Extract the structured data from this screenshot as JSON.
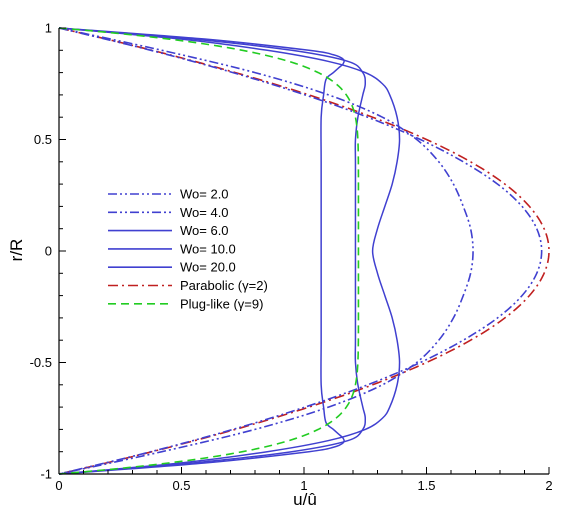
{
  "chart_data": {
    "type": "line",
    "title": "",
    "xlabel": "u/û",
    "ylabel": "r/R",
    "xlim": [
      0,
      2
    ],
    "ylim": [
      -1,
      1
    ],
    "xticks": [
      "0",
      "0.5",
      "1",
      "1.5",
      "2"
    ],
    "yticks": [
      "-1",
      "-0.5",
      "0",
      "0.5",
      "1"
    ],
    "grid": false,
    "legend_position": "left-center",
    "series": [
      {
        "name": "Wo=  2.0",
        "color": "#4040d0",
        "dash": "dash-dot-dot",
        "r": [
          1,
          0.9,
          0.8,
          0.7,
          0.6,
          0.5,
          0.4,
          0.3,
          0.2,
          0.1,
          0,
          -0.1,
          -0.2,
          -0.3,
          -0.4,
          -0.5,
          -0.6,
          -0.7,
          -0.8,
          -0.9,
          -1
        ],
        "u": [
          0,
          0.375,
          0.71,
          1.004,
          1.26,
          1.475,
          1.65,
          1.79,
          1.89,
          1.95,
          1.97,
          1.95,
          1.89,
          1.79,
          1.65,
          1.475,
          1.26,
          1.004,
          0.71,
          0.375,
          0
        ]
      },
      {
        "name": "Wo=  4.0",
        "color": "#4040d0",
        "dash": "dash-dot-dot",
        "r": [
          1,
          0.9,
          0.8,
          0.7,
          0.6,
          0.5,
          0.4,
          0.3,
          0.2,
          0.1,
          0,
          -0.1,
          -0.2,
          -0.3,
          -0.4,
          -0.5,
          -0.6,
          -0.7,
          -0.8,
          -0.9,
          -1
        ],
        "u": [
          0,
          0.42,
          0.8,
          1.1,
          1.32,
          1.46,
          1.55,
          1.61,
          1.65,
          1.68,
          1.69,
          1.68,
          1.65,
          1.61,
          1.55,
          1.46,
          1.32,
          1.1,
          0.8,
          0.42,
          0
        ]
      },
      {
        "name": "Wo=  6.0",
        "color": "#4040d0",
        "dash": "solid",
        "r": [
          1,
          0.95,
          0.9,
          0.85,
          0.8,
          0.75,
          0.7,
          0.6,
          0.5,
          0.4,
          0.3,
          0.2,
          0.1,
          0,
          -0.1,
          -0.2,
          -0.3,
          -0.4,
          -0.5,
          -0.6,
          -0.7,
          -0.75,
          -0.8,
          -0.85,
          -0.9,
          -0.95,
          -1
        ],
        "u": [
          0,
          0.5,
          0.85,
          1.1,
          1.25,
          1.32,
          1.35,
          1.38,
          1.39,
          1.38,
          1.36,
          1.33,
          1.3,
          1.28,
          1.3,
          1.33,
          1.36,
          1.38,
          1.39,
          1.38,
          1.35,
          1.32,
          1.25,
          1.1,
          0.85,
          0.5,
          0
        ]
      },
      {
        "name": "Wo=  10.0",
        "color": "#4040d0",
        "dash": "solid",
        "r": [
          1,
          0.95,
          0.9,
          0.85,
          0.8,
          0.75,
          0.7,
          0.6,
          0.5,
          0.4,
          0.2,
          0,
          -0.2,
          -0.4,
          -0.5,
          -0.6,
          -0.7,
          -0.75,
          -0.8,
          -0.85,
          -0.9,
          -0.95,
          -1
        ],
        "u": [
          0,
          0.55,
          0.95,
          1.18,
          1.24,
          1.25,
          1.24,
          1.22,
          1.21,
          1.21,
          1.21,
          1.21,
          1.21,
          1.21,
          1.21,
          1.22,
          1.24,
          1.25,
          1.24,
          1.18,
          0.95,
          0.55,
          0
        ]
      },
      {
        "name": "Wo=  20.0",
        "color": "#4040d0",
        "dash": "solid",
        "r": [
          1,
          0.95,
          0.9,
          0.88,
          0.86,
          0.84,
          0.82,
          0.8,
          0.77,
          0.7,
          0.6,
          0.4,
          0.2,
          0,
          -0.2,
          -0.4,
          -0.6,
          -0.7,
          -0.77,
          -0.8,
          -0.82,
          -0.84,
          -0.86,
          -0.88,
          -0.9,
          -0.95,
          -1
        ],
        "u": [
          0,
          0.6,
          1.02,
          1.12,
          1.16,
          1.16,
          1.14,
          1.12,
          1.09,
          1.08,
          1.07,
          1.07,
          1.07,
          1.07,
          1.07,
          1.07,
          1.07,
          1.08,
          1.09,
          1.12,
          1.14,
          1.16,
          1.16,
          1.12,
          1.02,
          0.6,
          0
        ]
      },
      {
        "name": "Parabolic (γ=2)",
        "color": "#c02020",
        "dash": "dash-dot",
        "formula": "u = 2(1 - r^2)"
      },
      {
        "name": "Plug-like (γ=9)",
        "color": "#22cc22",
        "dash": "dashed",
        "formula": "u = (11/9)(1 - |r|^9)"
      }
    ]
  }
}
